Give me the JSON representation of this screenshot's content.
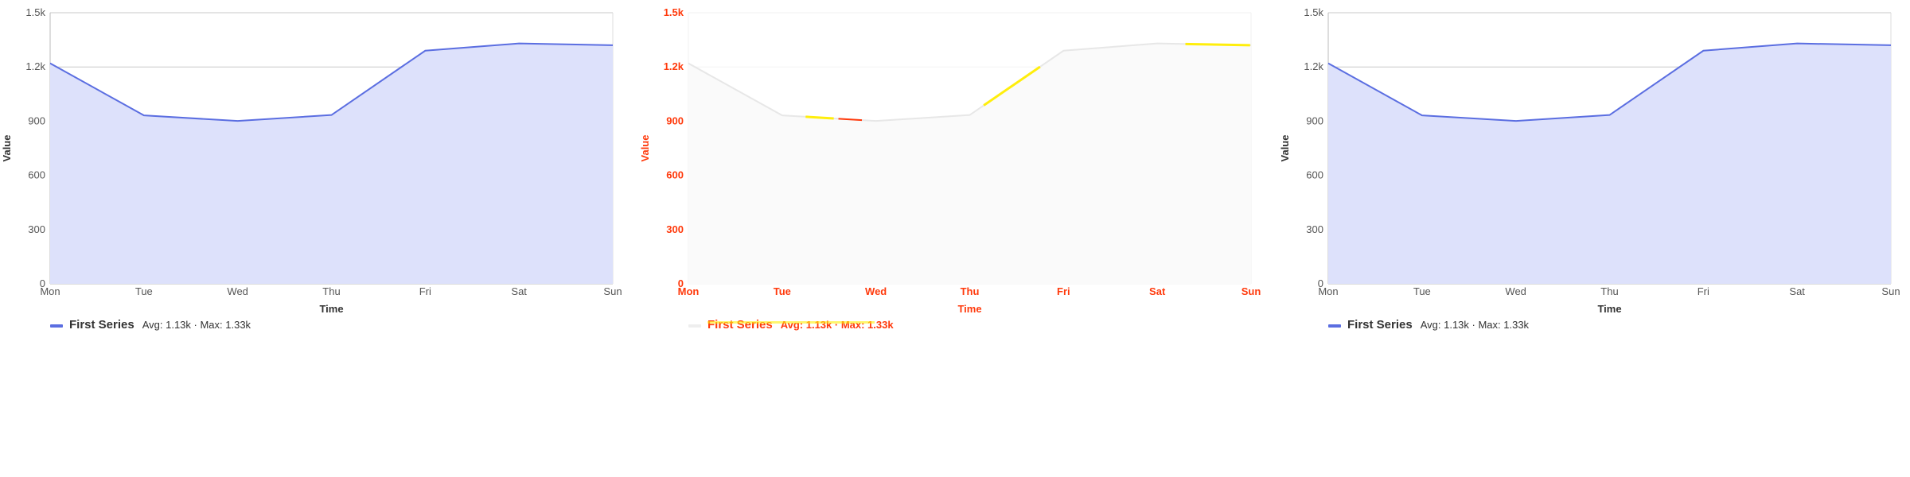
{
  "chart_data": [
    {
      "type": "area",
      "categories": [
        "Mon",
        "Tue",
        "Wed",
        "Thu",
        "Fri",
        "Sat",
        "Sun"
      ],
      "series": [
        {
          "name": "First Series",
          "values": [
            1220,
            932,
            901,
            934,
            1290,
            1330,
            1320
          ]
        }
      ],
      "xlabel": "Time",
      "ylabel": "Value",
      "ylim": [
        0,
        1500
      ],
      "yticks": [
        "0",
        "300",
        "600",
        "900",
        "1.2k",
        "1.5k"
      ],
      "legend_stats": "Avg: 1.13k · Max: 1.33k",
      "grid": true,
      "legend_position": "bottom-left",
      "colors": {
        "line": "#5b6ee1",
        "fill": "#dde1fb",
        "grid": "#c8c8c8"
      }
    },
    {
      "type": "area",
      "categories": [
        "Mon",
        "Tue",
        "Wed",
        "Thu",
        "Fri",
        "Sat",
        "Sun"
      ],
      "series": [
        {
          "name": "First Series",
          "values": [
            1220,
            932,
            901,
            934,
            1290,
            1330,
            1320
          ]
        }
      ],
      "xlabel": "Time",
      "ylabel": "Value",
      "ylim": [
        0,
        1500
      ],
      "yticks": [
        "0",
        "300",
        "600",
        "900",
        "1.2k",
        "1.5k"
      ],
      "legend_stats": "Avg: 1.13k · Max: 1.33k",
      "grid": false,
      "legend_position": "bottom-left",
      "colors": {
        "line": "#e6e6e6",
        "fill": "#fafafa",
        "text": "#ff3000",
        "highlight": "#ffee00",
        "grid": "#f2f2f2"
      }
    },
    {
      "type": "area",
      "categories": [
        "Mon",
        "Tue",
        "Wed",
        "Thu",
        "Fri",
        "Sat",
        "Sun"
      ],
      "series": [
        {
          "name": "First Series",
          "values": [
            1220,
            932,
            901,
            934,
            1290,
            1330,
            1320
          ]
        }
      ],
      "xlabel": "Time",
      "ylabel": "Value",
      "ylim": [
        0,
        1500
      ],
      "yticks": [
        "0",
        "300",
        "600",
        "900",
        "1.2k",
        "1.5k"
      ],
      "legend_stats": "Avg: 1.13k · Max: 1.33k",
      "grid": true,
      "legend_position": "bottom-left",
      "colors": {
        "line": "#5b6ee1",
        "fill": "#dde1fb",
        "grid": "#c8c8c8"
      }
    }
  ]
}
